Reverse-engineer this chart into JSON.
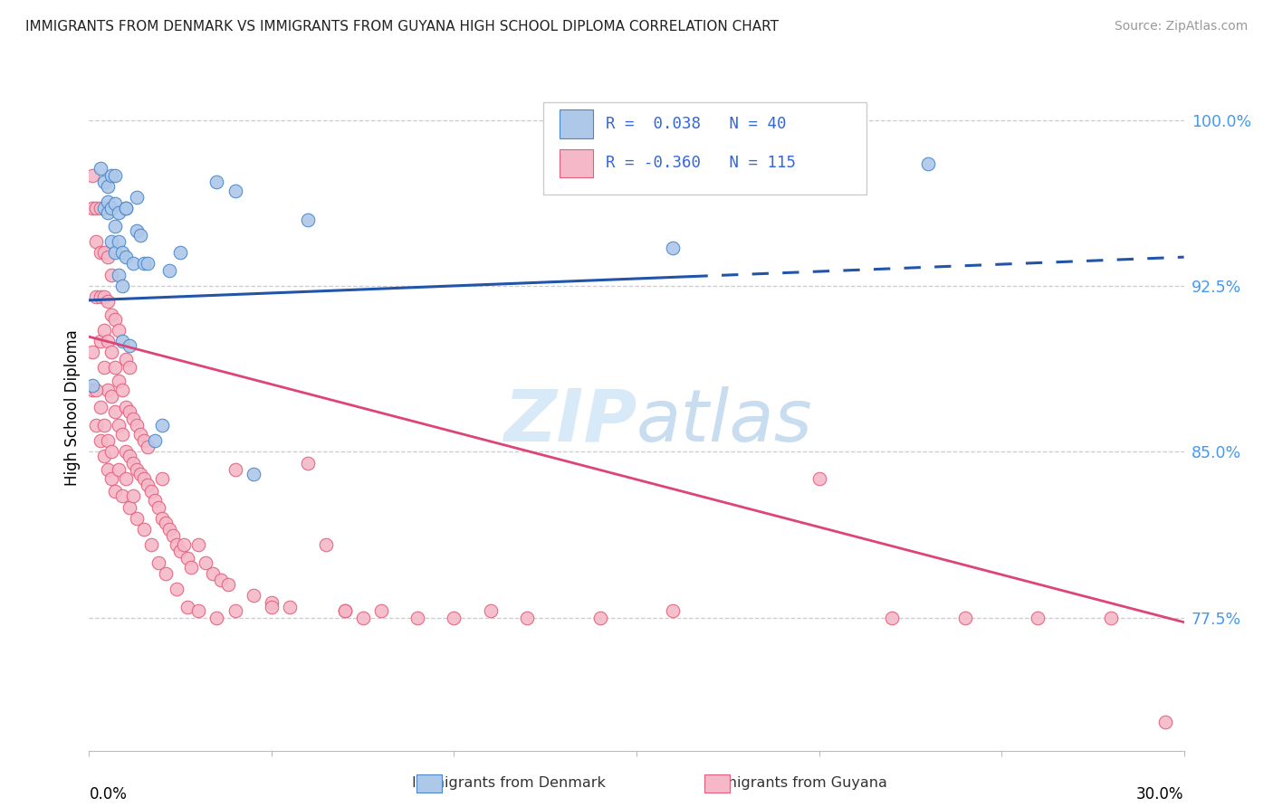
{
  "title": "IMMIGRANTS FROM DENMARK VS IMMIGRANTS FROM GUYANA HIGH SCHOOL DIPLOMA CORRELATION CHART",
  "source": "Source: ZipAtlas.com",
  "ylabel": "High School Diploma",
  "ytick_labels": [
    "100.0%",
    "92.5%",
    "85.0%",
    "77.5%"
  ],
  "ytick_values": [
    1.0,
    0.925,
    0.85,
    0.775
  ],
  "xlim": [
    0.0,
    0.3
  ],
  "ylim": [
    0.715,
    1.025
  ],
  "denmark_color": "#adc8e8",
  "guyana_color": "#f5b8c8",
  "denmark_edge_color": "#4a86c8",
  "guyana_edge_color": "#e0607a",
  "denmark_line_color": "#2255aa",
  "guyana_line_color": "#dd4477",
  "watermark_color": "#d8eaf8",
  "denmark_x": [
    0.001,
    0.003,
    0.004,
    0.004,
    0.005,
    0.005,
    0.005,
    0.006,
    0.006,
    0.006,
    0.007,
    0.007,
    0.007,
    0.007,
    0.008,
    0.008,
    0.008,
    0.009,
    0.009,
    0.009,
    0.01,
    0.01,
    0.011,
    0.012,
    0.013,
    0.013,
    0.014,
    0.015,
    0.016,
    0.02,
    0.022,
    0.025,
    0.035,
    0.04,
    0.045,
    0.06,
    0.16,
    0.23,
    0.01,
    0.018
  ],
  "denmark_y": [
    0.88,
    0.978,
    0.96,
    0.972,
    0.963,
    0.958,
    0.97,
    0.945,
    0.96,
    0.975,
    0.94,
    0.952,
    0.962,
    0.975,
    0.93,
    0.945,
    0.958,
    0.9,
    0.925,
    0.94,
    0.938,
    0.96,
    0.898,
    0.935,
    0.95,
    0.965,
    0.948,
    0.935,
    0.935,
    0.862,
    0.932,
    0.94,
    0.972,
    0.968,
    0.84,
    0.955,
    0.942,
    0.98,
    0.96,
    0.855
  ],
  "guyana_x": [
    0.001,
    0.001,
    0.002,
    0.002,
    0.002,
    0.003,
    0.003,
    0.003,
    0.003,
    0.004,
    0.004,
    0.004,
    0.004,
    0.005,
    0.005,
    0.005,
    0.005,
    0.006,
    0.006,
    0.006,
    0.006,
    0.007,
    0.007,
    0.007,
    0.008,
    0.008,
    0.008,
    0.009,
    0.009,
    0.01,
    0.01,
    0.01,
    0.011,
    0.011,
    0.011,
    0.012,
    0.012,
    0.013,
    0.013,
    0.014,
    0.014,
    0.015,
    0.015,
    0.016,
    0.016,
    0.017,
    0.018,
    0.019,
    0.02,
    0.02,
    0.021,
    0.022,
    0.023,
    0.024,
    0.025,
    0.026,
    0.027,
    0.028,
    0.03,
    0.032,
    0.034,
    0.036,
    0.038,
    0.04,
    0.045,
    0.05,
    0.055,
    0.06,
    0.065,
    0.07,
    0.075,
    0.08,
    0.09,
    0.1,
    0.11,
    0.12,
    0.14,
    0.16,
    0.2,
    0.22,
    0.24,
    0.26,
    0.28,
    0.295,
    0.001,
    0.001,
    0.002,
    0.002,
    0.003,
    0.003,
    0.004,
    0.004,
    0.005,
    0.005,
    0.006,
    0.006,
    0.007,
    0.008,
    0.009,
    0.01,
    0.011,
    0.012,
    0.013,
    0.015,
    0.017,
    0.019,
    0.021,
    0.024,
    0.027,
    0.03,
    0.035,
    0.04,
    0.05,
    0.07
  ],
  "guyana_y": [
    0.96,
    0.975,
    0.92,
    0.945,
    0.96,
    0.9,
    0.92,
    0.94,
    0.96,
    0.888,
    0.905,
    0.92,
    0.94,
    0.878,
    0.9,
    0.918,
    0.938,
    0.875,
    0.895,
    0.912,
    0.93,
    0.868,
    0.888,
    0.91,
    0.862,
    0.882,
    0.905,
    0.858,
    0.878,
    0.85,
    0.87,
    0.892,
    0.848,
    0.868,
    0.888,
    0.845,
    0.865,
    0.842,
    0.862,
    0.84,
    0.858,
    0.838,
    0.855,
    0.835,
    0.852,
    0.832,
    0.828,
    0.825,
    0.82,
    0.838,
    0.818,
    0.815,
    0.812,
    0.808,
    0.805,
    0.808,
    0.802,
    0.798,
    0.808,
    0.8,
    0.795,
    0.792,
    0.79,
    0.842,
    0.785,
    0.782,
    0.78,
    0.845,
    0.808,
    0.778,
    0.775,
    0.778,
    0.775,
    0.775,
    0.778,
    0.775,
    0.775,
    0.778,
    0.838,
    0.775,
    0.775,
    0.775,
    0.775,
    0.728,
    0.878,
    0.895,
    0.862,
    0.878,
    0.855,
    0.87,
    0.848,
    0.862,
    0.842,
    0.855,
    0.838,
    0.85,
    0.832,
    0.842,
    0.83,
    0.838,
    0.825,
    0.83,
    0.82,
    0.815,
    0.808,
    0.8,
    0.795,
    0.788,
    0.78,
    0.778,
    0.775,
    0.778,
    0.78,
    0.778
  ]
}
